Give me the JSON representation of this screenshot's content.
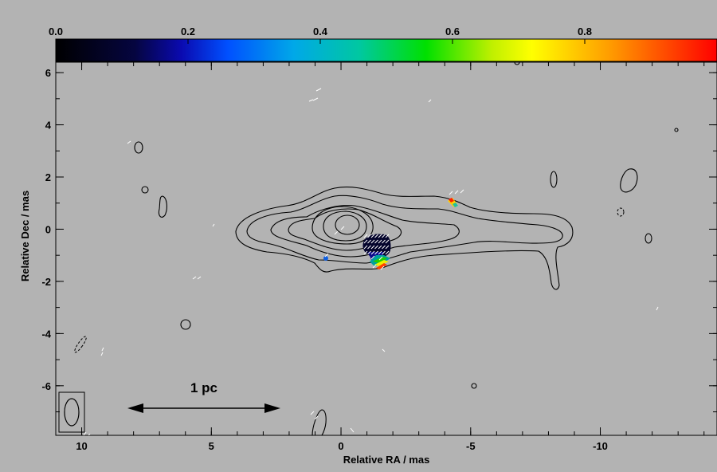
{
  "chart_data": {
    "type": "contour-map",
    "xlabel": "Relative RA / mas",
    "ylabel": "Relative Dec / mas",
    "xlim": [
      11,
      -14.5
    ],
    "ylim": [
      -7.9,
      6.4
    ],
    "x_ticks": [
      10,
      5,
      0,
      -5,
      -10
    ],
    "x_tick_labels": [
      "10",
      "5",
      "0",
      "-5",
      "-10"
    ],
    "y_ticks": [
      6,
      4,
      2,
      0,
      -2,
      -4,
      -6
    ],
    "y_tick_labels": [
      "6",
      "4",
      "2",
      "0",
      "-2",
      "-4",
      "-6"
    ],
    "colorbar": {
      "range": [
        0.0,
        1.0
      ],
      "ticks": [
        0.0,
        0.2,
        0.4,
        0.6,
        0.8
      ],
      "tick_labels": [
        "0.0",
        "0.2",
        "0.4",
        "0.6",
        "0.8"
      ],
      "colormap": [
        "#000000",
        "#06069a",
        "#0050ff",
        "#00c0c0",
        "#00e000",
        "#ffff00",
        "#ff8800",
        "#ff0000"
      ]
    },
    "background_color": "#b3b3b3",
    "scale_bar": {
      "label": "1 pc",
      "from_ra": 8.0,
      "to_ra": 2.5,
      "dec": -6.85
    },
    "beam": {
      "ra": 10.3,
      "dec": -7.0,
      "major": 1.2,
      "minor": 0.6
    },
    "core": {
      "ra": 0.3,
      "dec": 0.0
    },
    "jet_direction": "west (negative RA)",
    "polarization_patches": [
      {
        "ra": -1.2,
        "dec": -0.8,
        "fraction_level": "0.0-0.1"
      },
      {
        "ra": -1.3,
        "dec": -1.3,
        "fraction_level": "0.3-0.9"
      },
      {
        "ra": 0.7,
        "dec": -1.2,
        "fraction_level": "0.2-0.3"
      },
      {
        "ra": -4.1,
        "dec": 1.0,
        "fraction_level": "0.6-1.0"
      }
    ]
  }
}
